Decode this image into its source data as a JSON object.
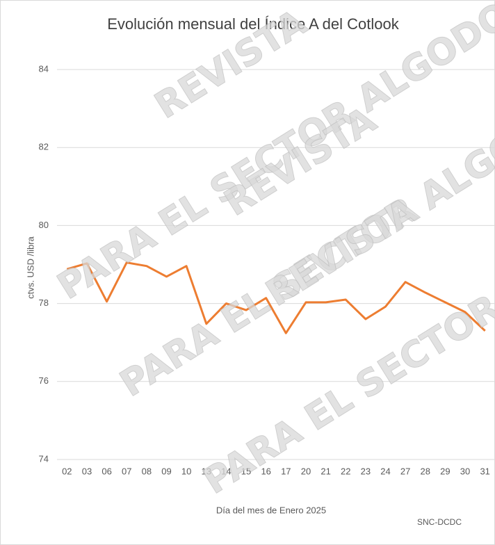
{
  "chart_data": {
    "type": "line",
    "title": "Evolución mensual del Índice A del Cotlook",
    "y_label": "ctvs. USD /libra",
    "x_label": "Día del mes de Enero 2025",
    "source": "SNC-DCDC",
    "watermark": [
      "REVISTA",
      "PARA EL SECTOR ALGODONERO"
    ],
    "categories": [
      "02",
      "03",
      "06",
      "07",
      "08",
      "09",
      "10",
      "13",
      "14",
      "15",
      "16",
      "17",
      "20",
      "21",
      "22",
      "23",
      "24",
      "27",
      "28",
      "29",
      "30",
      "31"
    ],
    "series": [
      {
        "name": "Índice A",
        "color": "#ed7d31",
        "values": [
          78.88,
          79.03,
          78.05,
          79.05,
          78.96,
          78.69,
          78.96,
          77.48,
          78.0,
          77.83,
          78.14,
          77.24,
          78.03,
          78.03,
          78.1,
          77.6,
          77.92,
          78.55,
          78.28,
          78.03,
          77.78,
          77.3
        ]
      }
    ],
    "ylim": [
      74,
      84
    ],
    "yticks": [
      74,
      76,
      78,
      80,
      82,
      84
    ],
    "grid": true
  }
}
